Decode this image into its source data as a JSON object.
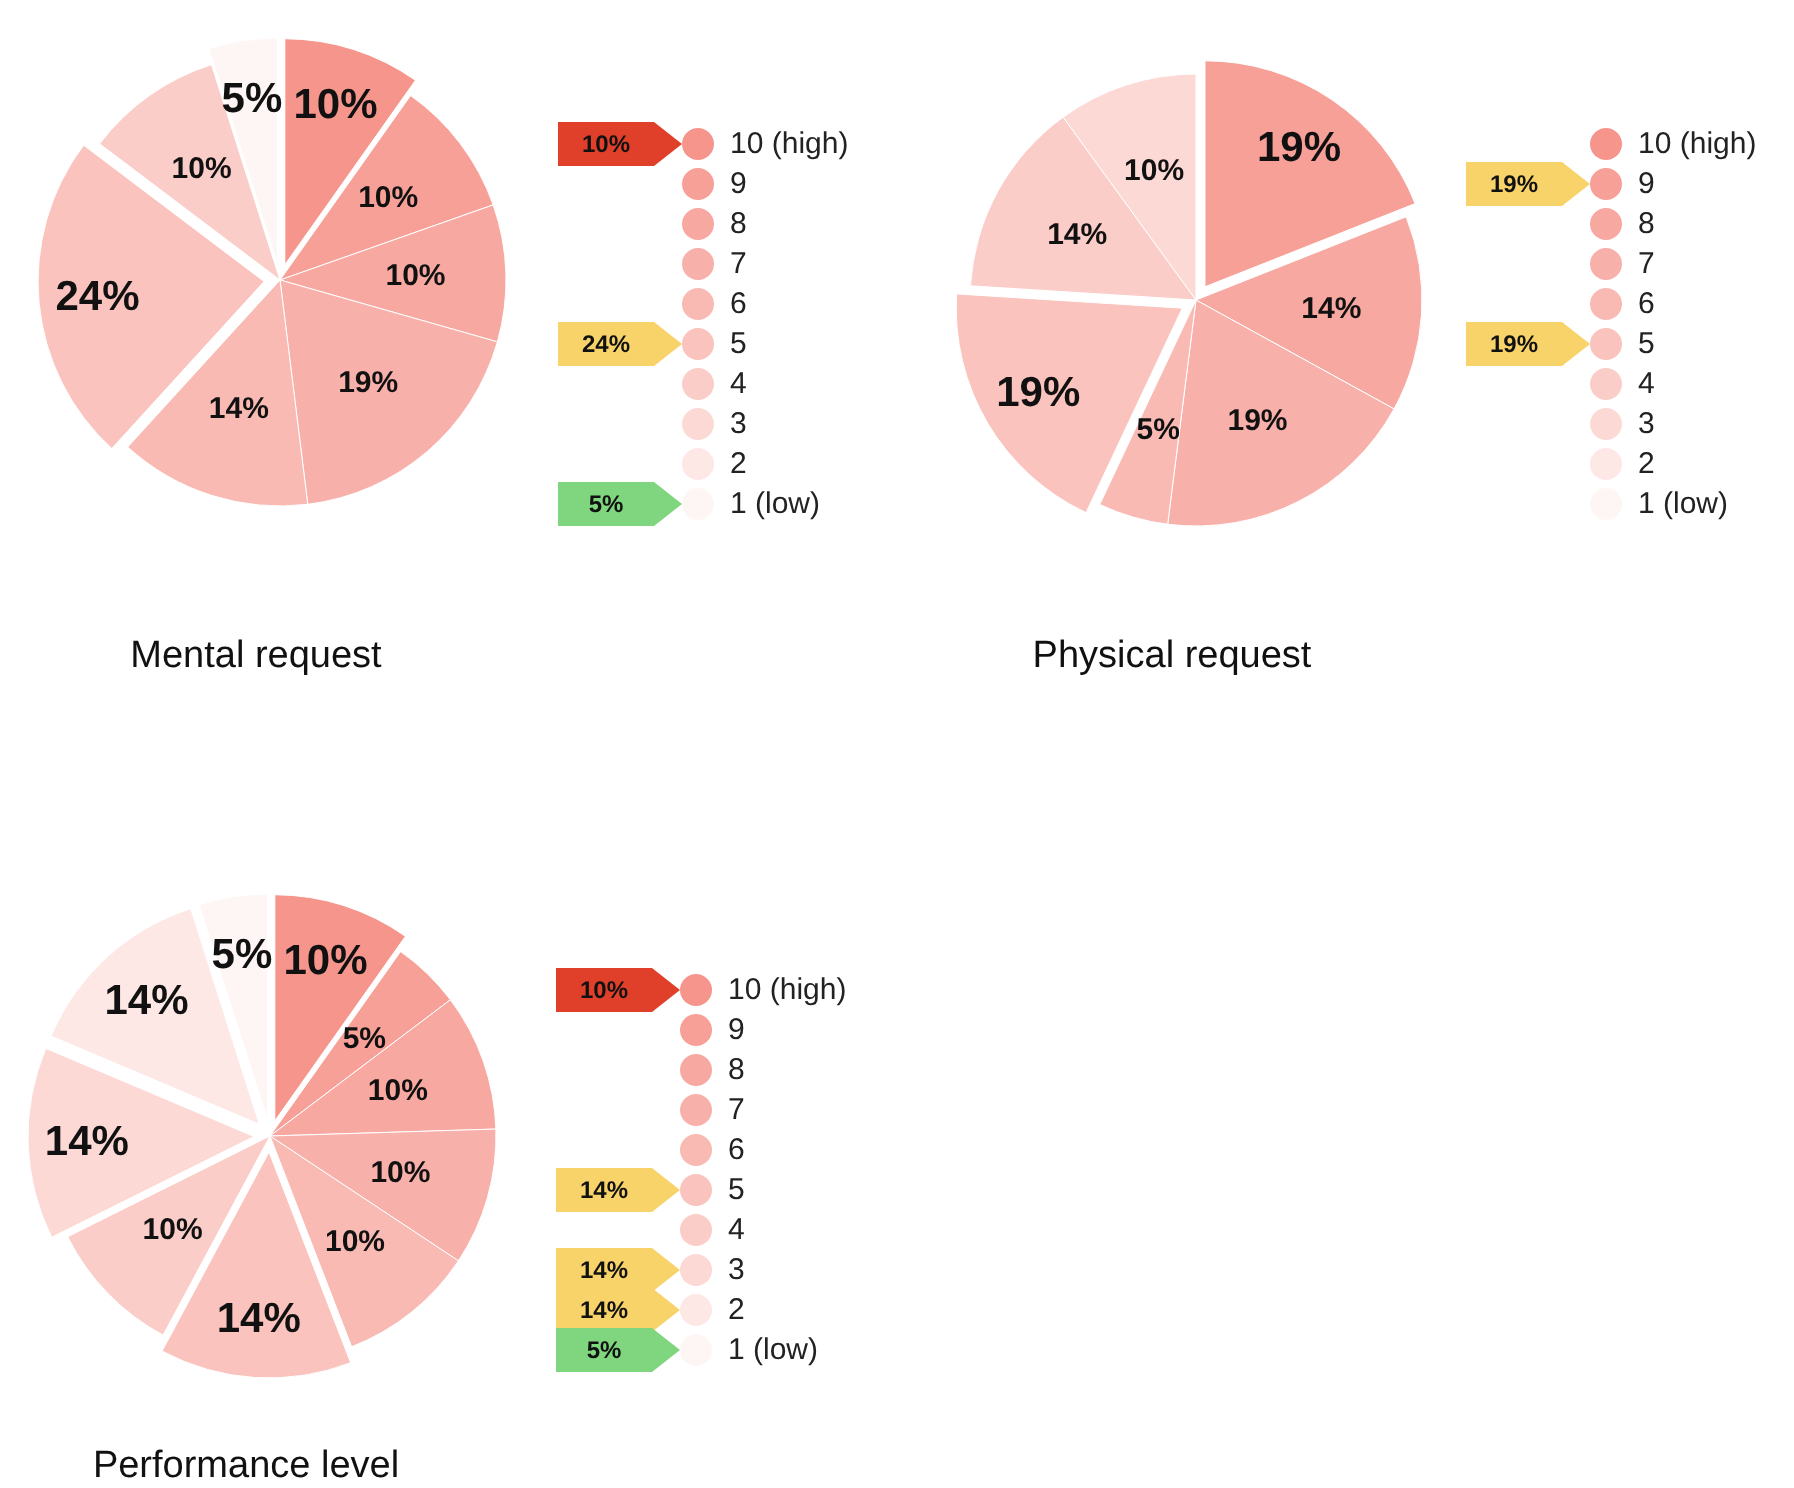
{
  "chart_data": [
    {
      "type": "pie",
      "title": "Mental request",
      "categories": [
        "10 (high)",
        "9",
        "8",
        "7",
        "6",
        "5",
        "4",
        "3",
        "2",
        "1 (low)"
      ],
      "values": [
        10,
        10,
        10,
        19,
        14,
        24,
        10,
        0,
        0,
        5
      ],
      "value_labels": [
        "10%",
        "10%",
        "10%",
        "19%",
        "14%",
        "24%",
        "10%",
        null,
        null,
        "5%"
      ],
      "colors": [
        "#f5958c",
        "#f6a098",
        "#f7a9a1",
        "#f8b1aa",
        "#f9bab3",
        "#fac3bd",
        "#fbcdc8",
        "#fcd9d5",
        "#fde8e5",
        "#fef6f4"
      ],
      "legend": "right",
      "annotations": [
        {
          "text": "10%",
          "x": "10 (high)"
        },
        {
          "text": "24%",
          "x": "5"
        },
        {
          "text": "5%",
          "x": "1 (low)"
        }
      ]
    },
    {
      "type": "pie",
      "title": "Physical request",
      "categories": [
        "10 (high)",
        "9",
        "8",
        "7",
        "6",
        "5",
        "4",
        "3",
        "2",
        "1 (low)"
      ],
      "values": [
        0,
        19,
        14,
        19,
        5,
        19,
        14,
        10,
        0,
        0
      ],
      "value_labels": [
        null,
        "19%",
        "14%",
        "19%",
        "5%",
        "19%",
        "14%",
        "10%",
        null,
        null
      ],
      "colors": [
        "#f5958c",
        "#f6a098",
        "#f7a9a1",
        "#f8b1aa",
        "#f9bab3",
        "#fac3bd",
        "#fbcdc8",
        "#fcd9d5",
        "#fde8e5",
        "#fef6f4"
      ],
      "legend": "right",
      "annotations": [
        {
          "text": "19%",
          "x": "9"
        },
        {
          "text": "19%",
          "x": "5"
        }
      ]
    },
    {
      "type": "pie",
      "title": "Performance level",
      "categories": [
        "10 (high)",
        "9",
        "8",
        "7",
        "6",
        "5",
        "4",
        "3",
        "2",
        "1 (low)"
      ],
      "values": [
        10,
        5,
        10,
        10,
        10,
        14,
        10,
        14,
        14,
        5
      ],
      "value_labels": [
        "10%",
        "5%",
        "10%",
        "10%",
        "10%",
        "14%",
        "10%",
        "14%",
        "14%",
        "5%"
      ],
      "colors": [
        "#f5958c",
        "#f6a098",
        "#f7a9a1",
        "#f8b1aa",
        "#f9bab3",
        "#fac3bd",
        "#fbcdc8",
        "#fcd9d5",
        "#fde8e5",
        "#fef6f4"
      ],
      "legend": "right",
      "annotations": [
        {
          "text": "10%",
          "x": "10 (high)"
        },
        {
          "text": "14%",
          "x": "5"
        },
        {
          "text": "14%",
          "x": "3"
        },
        {
          "text": "14%",
          "x": "2"
        },
        {
          "text": "5%",
          "x": "1 (low)"
        }
      ]
    }
  ]
}
